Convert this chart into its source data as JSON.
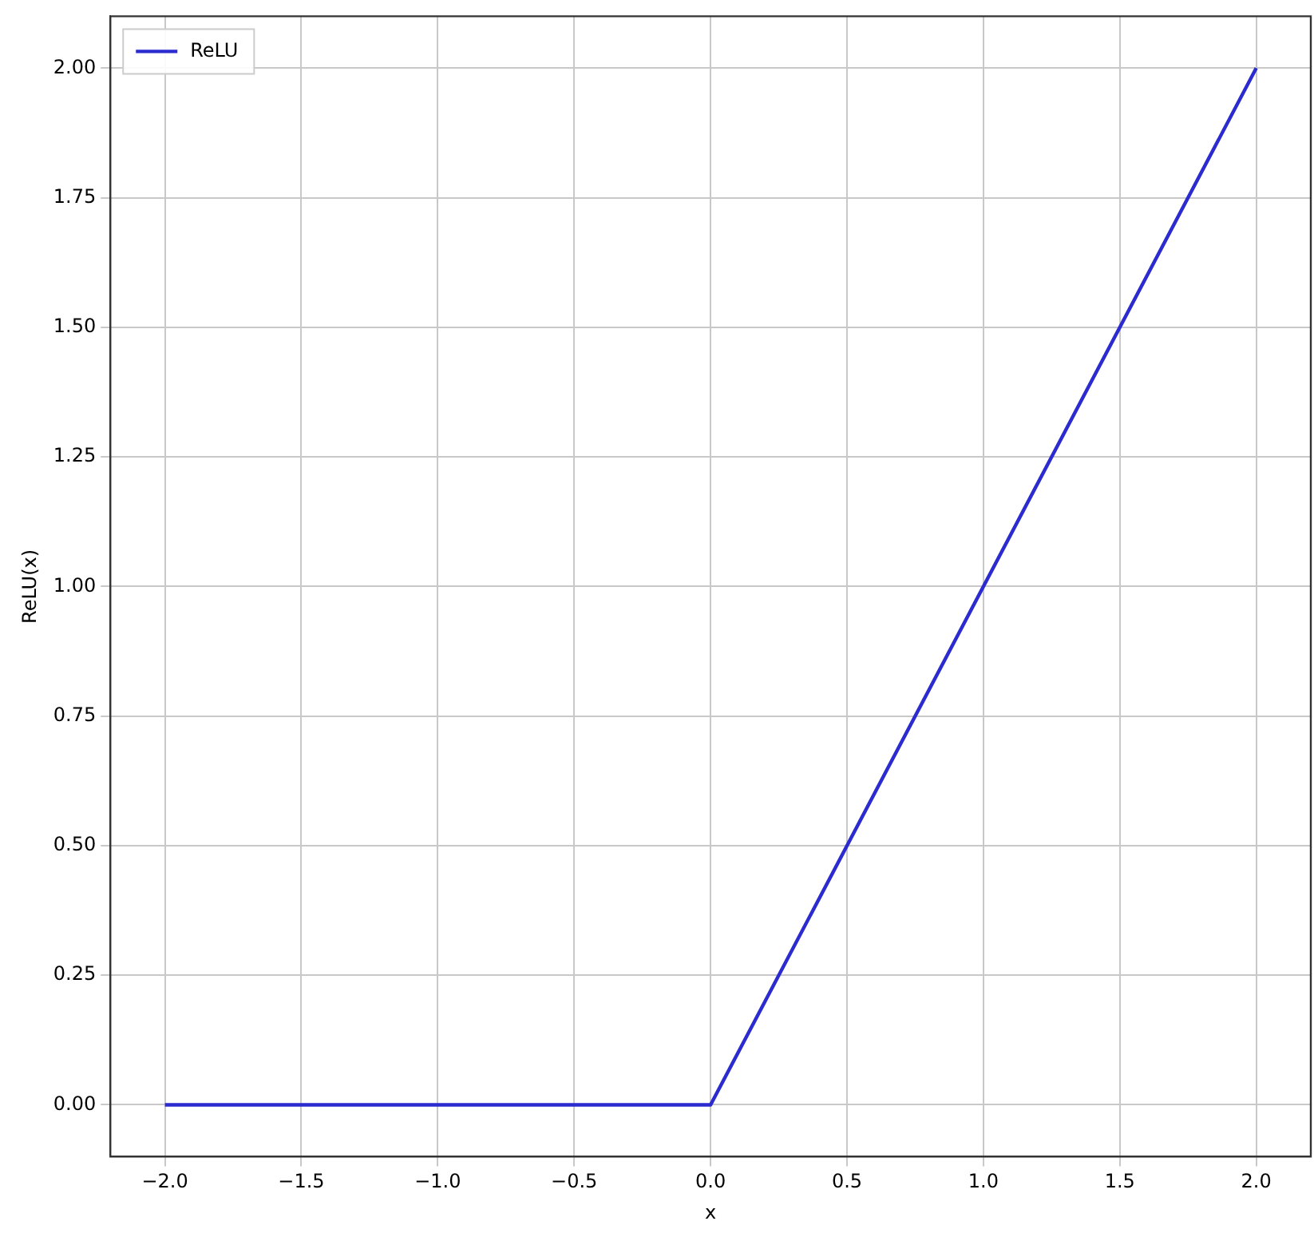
{
  "chart_data": {
    "type": "line",
    "xlabel": "x",
    "ylabel": "ReLU(x)",
    "x": [
      -2,
      0,
      2
    ],
    "series": [
      {
        "name": "ReLU",
        "color": "#2b2bd0",
        "values": [
          0,
          0,
          2
        ]
      }
    ],
    "xlim": [
      -2.2,
      2.2
    ],
    "xticks": [
      {
        "value": -2,
        "label": "−2.0"
      },
      {
        "value": -1.5,
        "label": "−1.5"
      },
      {
        "value": -1,
        "label": "−1.0"
      },
      {
        "value": -0.5,
        "label": "−0.5"
      },
      {
        "value": 0,
        "label": "0.0"
      },
      {
        "value": 0.5,
        "label": "0.5"
      },
      {
        "value": 1,
        "label": "1.0"
      },
      {
        "value": 1.5,
        "label": "1.5"
      },
      {
        "value": 2,
        "label": "2.0"
      }
    ],
    "ylim": [
      -0.1,
      2.1
    ],
    "yticks": [
      {
        "value": 0,
        "label": "0.00"
      },
      {
        "value": 0.25,
        "label": "0.25"
      },
      {
        "value": 0.5,
        "label": "0.50"
      },
      {
        "value": 0.75,
        "label": "0.75"
      },
      {
        "value": 1,
        "label": "1.00"
      },
      {
        "value": 1.25,
        "label": "1.25"
      },
      {
        "value": 1.5,
        "label": "1.50"
      },
      {
        "value": 1.75,
        "label": "1.75"
      },
      {
        "value": 2,
        "label": "2.00"
      }
    ],
    "grid": true,
    "legend": "top left",
    "marker": "none",
    "line_style": "solid"
  }
}
